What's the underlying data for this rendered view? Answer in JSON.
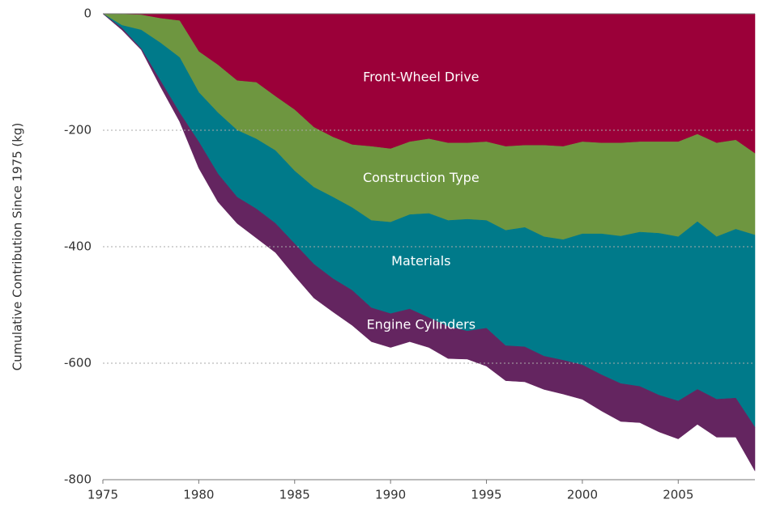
{
  "chart_data": {
    "type": "stacked-area",
    "y_label": "Cumulative Contribution Since 1975 (kg)",
    "x": [
      1975,
      1976,
      1977,
      1978,
      1979,
      1980,
      1981,
      1982,
      1983,
      1984,
      1985,
      1986,
      1987,
      1988,
      1989,
      1990,
      1991,
      1992,
      1993,
      1994,
      1995,
      1996,
      1997,
      1998,
      1999,
      2000,
      2001,
      2002,
      2003,
      2004,
      2005,
      2006,
      2007,
      2008,
      2009
    ],
    "xlim": [
      1975,
      2009
    ],
    "xticks": [
      1975,
      1980,
      1985,
      1990,
      1995,
      2000,
      2005
    ],
    "ylim": [
      -800,
      0
    ],
    "yticks": [
      0,
      -200,
      -400,
      -600,
      -800
    ],
    "grid": true,
    "series": [
      {
        "name": "Front-Wheel Drive",
        "color": "#9b0039",
        "values": [
          0,
          -1,
          -2,
          -8,
          -12,
          -65,
          -88,
          -115,
          -118,
          -142,
          -165,
          -195,
          -212,
          -225,
          -228,
          -232,
          -220,
          -215,
          -222,
          -222,
          -220,
          -228,
          -226,
          -226,
          -228,
          -220,
          -222,
          -222,
          -220,
          -220,
          -220,
          -207,
          -222,
          -217,
          -240
        ]
      },
      {
        "name": "Construction Type",
        "color": "#6e9640",
        "values": [
          0,
          -19,
          -26,
          -42,
          -63,
          -70,
          -82,
          -85,
          -97,
          -93,
          -105,
          -103,
          -103,
          -108,
          -127,
          -126,
          -125,
          -128,
          -133,
          -131,
          -135,
          -144,
          -141,
          -157,
          -160,
          -158,
          -156,
          -160,
          -155,
          -157,
          -163,
          -150,
          -161,
          -153,
          -140
        ]
      },
      {
        "name": "Materials",
        "color": "#007a8a",
        "values": [
          0,
          -5,
          -32,
          -65,
          -95,
          -85,
          -105,
          -115,
          -120,
          -125,
          -125,
          -132,
          -140,
          -142,
          -150,
          -157,
          -162,
          -179,
          -182,
          -192,
          -185,
          -198,
          -205,
          -205,
          -207,
          -225,
          -242,
          -253,
          -265,
          -278,
          -282,
          -288,
          -279,
          -290,
          -330
        ]
      },
      {
        "name": "Engine Cylinders",
        "color": "#642560",
        "values": [
          0,
          -3,
          -2,
          -10,
          -15,
          -45,
          -48,
          -45,
          -50,
          -50,
          -55,
          -58,
          -57,
          -60,
          -58,
          -58,
          -56,
          -51,
          -55,
          -48,
          -65,
          -60,
          -60,
          -57,
          -58,
          -59,
          -62,
          -65,
          -62,
          -63,
          -65,
          -60,
          -65,
          -67,
          -75
        ]
      }
    ]
  }
}
